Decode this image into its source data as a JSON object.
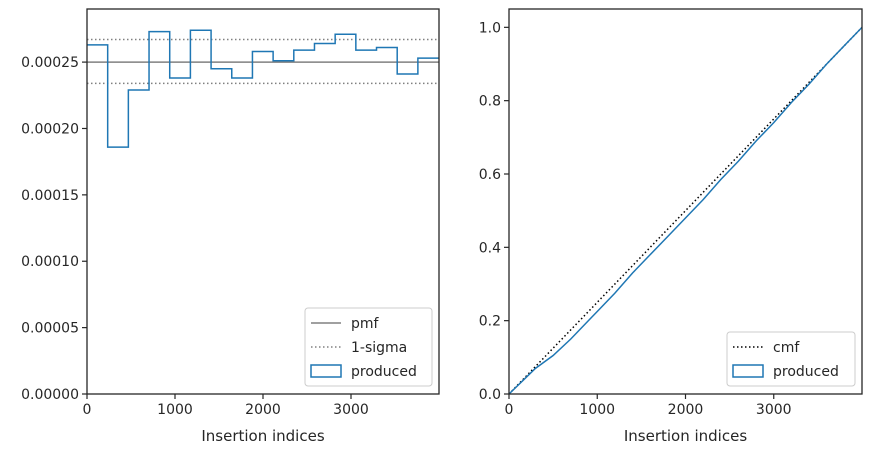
{
  "colors": {
    "produced": "#1f77b4",
    "pmf": "#808080",
    "sigma": "#808080",
    "cmf": "#000000",
    "axes": "#262626"
  },
  "chart_data": [
    {
      "type": "step",
      "xlabel": "Insertion indices",
      "ylabel": "",
      "xlim": [
        0,
        4000
      ],
      "ylim": [
        0,
        0.00029
      ],
      "x_ticks": [
        0,
        1000,
        2000,
        3000
      ],
      "x_tick_labels": [
        "0",
        "1000",
        "2000",
        "3000"
      ],
      "y_ticks": [
        0,
        5e-05,
        0.0001,
        0.00015,
        0.0002,
        0.00025
      ],
      "y_tick_labels": [
        "0.00000",
        "0.00005",
        "0.00010",
        "0.00015",
        "0.00020",
        "0.00025"
      ],
      "pmf": 0.00025,
      "sigma_band": [
        0.000234,
        0.000267
      ],
      "bin_edges": [
        0,
        235,
        470,
        705,
        940,
        1175,
        1410,
        1645,
        1880,
        2115,
        2350,
        2585,
        2820,
        3055,
        3290,
        3525,
        3760,
        4000
      ],
      "bin_values": [
        0.000263,
        0.000186,
        0.000229,
        0.000273,
        0.000238,
        0.000274,
        0.000245,
        0.000238,
        0.000258,
        0.000251,
        0.000259,
        0.000264,
        0.000271,
        0.000259,
        0.000261,
        0.000241,
        0.000253
      ],
      "legend": {
        "placement": "lower right",
        "entries": [
          "pmf",
          "1-sigma",
          "produced"
        ]
      }
    },
    {
      "type": "line",
      "xlabel": "Insertion indices",
      "ylabel": "",
      "xlim": [
        0,
        4000
      ],
      "ylim": [
        0,
        1.05
      ],
      "x_ticks": [
        0,
        1000,
        2000,
        3000
      ],
      "x_tick_labels": [
        "0",
        "1000",
        "2000",
        "3000"
      ],
      "y_ticks": [
        0,
        0.2,
        0.4,
        0.6,
        0.8,
        1.0
      ],
      "y_tick_labels": [
        "0.0",
        "0.2",
        "0.4",
        "0.6",
        "0.8",
        "1.0"
      ],
      "series": [
        {
          "name": "cmf",
          "x": [
            0,
            4000
          ],
          "y": [
            0,
            1
          ]
        },
        {
          "name": "produced",
          "x": [
            0,
            150,
            300,
            500,
            700,
            900,
            1000,
            1200,
            1400,
            1600,
            1800,
            2000,
            2200,
            2400,
            2600,
            2800,
            3000,
            3200,
            3400,
            3600,
            3800,
            4000
          ],
          "y": [
            0,
            0.035,
            0.07,
            0.105,
            0.15,
            0.2,
            0.225,
            0.275,
            0.33,
            0.38,
            0.43,
            0.48,
            0.53,
            0.585,
            0.635,
            0.69,
            0.74,
            0.795,
            0.845,
            0.9,
            0.95,
            1.0
          ]
        }
      ],
      "legend": {
        "placement": "lower right",
        "entries": [
          "cmf",
          "produced"
        ]
      }
    }
  ]
}
